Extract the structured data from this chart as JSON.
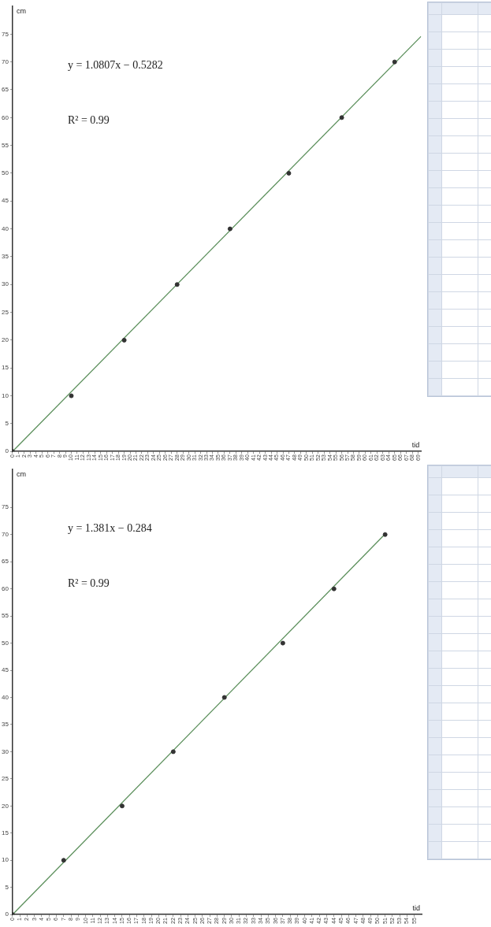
{
  "chart_data": [
    {
      "type": "scatter",
      "xlabel": "tid",
      "ylabel": "cm",
      "xlim": [
        0,
        69.5
      ],
      "ylim": [
        0,
        80
      ],
      "xticks": [
        0,
        1,
        2,
        3,
        4,
        5,
        6,
        7,
        8,
        9,
        10,
        11,
        12,
        13,
        14,
        15,
        16,
        17,
        18,
        19,
        20,
        21,
        22,
        23,
        24,
        25,
        26,
        27,
        28,
        29,
        30,
        31,
        32,
        33,
        34,
        35,
        36,
        37,
        38,
        39,
        40,
        41,
        42,
        43,
        44,
        45,
        46,
        47,
        48,
        49,
        50,
        51,
        52,
        53,
        54,
        55,
        56,
        57,
        58,
        59,
        60,
        61,
        62,
        63,
        64,
        65,
        66,
        67,
        68,
        69
      ],
      "yticks": [
        0,
        5,
        10,
        15,
        20,
        25,
        30,
        35,
        40,
        45,
        50,
        55,
        60,
        65,
        70,
        75
      ],
      "marker": "circle",
      "grid": false,
      "annotations": [
        "y = 1.0807x − 0.5282",
        "R² = 0.99"
      ],
      "series": [
        {
          "x": [
            0,
            10,
            19,
            28,
            37,
            47,
            56,
            65
          ],
          "values": [
            0,
            10,
            20,
            30,
            40,
            50,
            60,
            70
          ],
          "color": "#333333"
        },
        {
          "type": "line",
          "x": [
            0,
            69.5
          ],
          "values": [
            0,
            74.6
          ],
          "color": "#5b8f5b",
          "marker": "none"
        }
      ]
    },
    {
      "type": "scatter",
      "xlabel": "tid",
      "ylabel": "cm",
      "xlim": [
        0,
        56
      ],
      "ylim": [
        0,
        82
      ],
      "xticks": [
        0,
        1,
        2,
        3,
        4,
        5,
        6,
        7,
        8,
        9,
        10,
        11,
        12,
        13,
        14,
        15,
        16,
        17,
        18,
        19,
        20,
        21,
        22,
        23,
        24,
        25,
        26,
        27,
        28,
        29,
        30,
        31,
        32,
        33,
        34,
        35,
        36,
        37,
        38,
        39,
        40,
        41,
        42,
        43,
        44,
        45,
        46,
        47,
        48,
        49,
        50,
        51,
        52,
        53,
        54,
        55
      ],
      "yticks": [
        0,
        5,
        10,
        15,
        20,
        25,
        30,
        35,
        40,
        45,
        50,
        55,
        60,
        65,
        70,
        75
      ],
      "marker": "circle",
      "grid": false,
      "annotations": [
        "y = 1.381x − 0.284",
        "R² = 0.99"
      ],
      "series": [
        {
          "x": [
            0,
            7,
            15,
            22,
            29,
            37,
            44,
            51
          ],
          "values": [
            0,
            10,
            20,
            30,
            40,
            50,
            60,
            70
          ],
          "color": "#333333"
        },
        {
          "type": "line",
          "x": [
            0,
            51
          ],
          "values": [
            0,
            70.1
          ],
          "color": "#5b8f5b",
          "marker": "none"
        }
      ]
    }
  ]
}
